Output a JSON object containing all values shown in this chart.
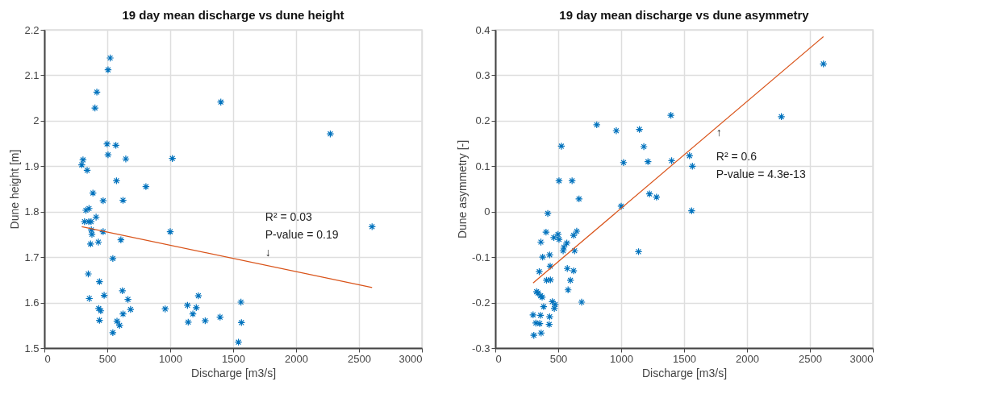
{
  "chart_data": [
    {
      "type": "scatter",
      "title": "19 day mean discharge vs dune height",
      "xlabel": "Discharge [m3/s]",
      "ylabel": "Dune height [m]",
      "xlim": [
        0,
        3000
      ],
      "xticks": [
        0,
        500,
        1000,
        1500,
        2000,
        2500,
        3000
      ],
      "ylim": [
        1.5,
        2.2
      ],
      "yticks": [
        1.5,
        1.6,
        1.7,
        1.8,
        1.9,
        2,
        2.1,
        2.2
      ],
      "grid": true,
      "annotations": [
        "R² = 0.03",
        "P-value = 0.19",
        "↓"
      ],
      "series": [
        {
          "marker": "cross",
          "color": "#0072bd",
          "x": [
            523,
            506,
            417,
            402,
            1402,
            498,
            568,
            506,
            307,
            297,
            340,
            647,
            1017,
            573,
            807,
            386,
            467,
            625,
            330,
            355,
            411,
            319,
            353,
            371,
            373,
            378,
            467,
            1000,
            367,
            429,
            608,
            544,
            349,
            438,
            475,
            620,
            357,
            664,
            432,
            448,
            685,
            438,
            625,
            577,
            598,
            544,
            960,
            1137,
            1224,
            1207,
            1180,
            1143,
            1278,
            1396,
            1562,
            1566,
            1542,
            2272,
            2604
          ],
          "values": [
            2.138,
            2.112,
            2.063,
            2.028,
            2.041,
            1.949,
            1.946,
            1.925,
            1.914,
            1.903,
            1.891,
            1.916,
            1.917,
            1.868,
            1.855,
            1.841,
            1.824,
            1.825,
            1.803,
            1.807,
            1.788,
            1.778,
            1.778,
            1.778,
            1.76,
            1.75,
            1.756,
            1.756,
            1.729,
            1.733,
            1.738,
            1.697,
            1.663,
            1.646,
            1.616,
            1.626,
            1.609,
            1.607,
            1.587,
            1.582,
            1.585,
            1.561,
            1.575,
            1.559,
            1.55,
            1.534,
            1.586,
            1.594,
            1.615,
            1.589,
            1.575,
            1.557,
            1.56,
            1.568,
            1.601,
            1.556,
            1.513,
            1.971,
            1.767
          ]
        },
        {
          "type": "line",
          "color": "#d95319",
          "x": [
            297,
            2604
          ],
          "values": [
            1.767,
            1.633
          ]
        }
      ]
    },
    {
      "type": "scatter",
      "title": "19 day mean discharge vs dune asymmetry",
      "xlabel": "Discharge [m3/s]",
      "ylabel": "Dune asymmetry [-]",
      "xlim": [
        0,
        3000
      ],
      "xticks": [
        0,
        500,
        1000,
        1500,
        2000,
        2500,
        3000
      ],
      "ylim": [
        -0.3,
        0.4
      ],
      "yticks": [
        -0.3,
        -0.2,
        -0.1,
        0,
        0.1,
        0.2,
        0.3,
        0.4
      ],
      "grid": true,
      "annotations": [
        "↑",
        "R² = 0.6",
        "P-value = 4.3e-13"
      ],
      "series": [
        {
          "marker": "cross",
          "color": "#0072bd",
          "x": [
            806,
            961,
            1145,
            1180,
            525,
            1019,
            1213,
            506,
            610,
            665,
            1225,
            1281,
            1000,
            417,
            1138,
            403,
            362,
            465,
            498,
            506,
            622,
            647,
            568,
            545,
            539,
            630,
            376,
            432,
            436,
            349,
            572,
            622,
            407,
            438,
            597,
            578,
            328,
            339,
            360,
            372,
            686,
            453,
            475,
            469,
            384,
            300,
            359,
            432,
            322,
            353,
            428,
            364,
            306,
            1395,
            1401,
            1543,
            1566,
            1560,
            2273,
            2607
          ],
          "values": [
            0.191,
            0.178,
            0.181,
            0.143,
            0.144,
            0.108,
            0.11,
            0.068,
            0.068,
            0.028,
            0.039,
            0.032,
            0.012,
            -0.004,
            -0.088,
            -0.045,
            -0.067,
            -0.057,
            -0.05,
            -0.061,
            -0.052,
            -0.043,
            -0.069,
            -0.078,
            -0.086,
            -0.086,
            -0.1,
            -0.095,
            -0.12,
            -0.132,
            -0.125,
            -0.13,
            -0.151,
            -0.15,
            -0.151,
            -0.172,
            -0.176,
            -0.179,
            -0.185,
            -0.188,
            -0.199,
            -0.198,
            -0.204,
            -0.213,
            -0.209,
            -0.227,
            -0.228,
            -0.231,
            -0.245,
            -0.246,
            -0.248,
            -0.267,
            -0.272,
            0.212,
            0.112,
            0.123,
            0.1,
            0.002,
            0.209,
            0.325
          ]
        },
        {
          "type": "line",
          "color": "#d95319",
          "x": [
            300,
            2607
          ],
          "values": [
            -0.157,
            0.385
          ]
        }
      ]
    }
  ]
}
